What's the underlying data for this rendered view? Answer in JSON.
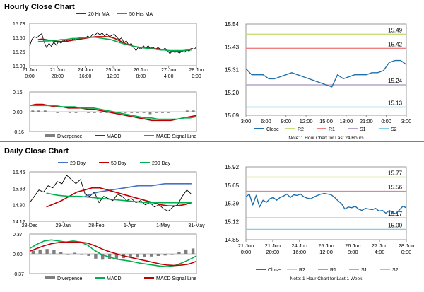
{
  "sections": {
    "hourly_title": "Hourly Close Chart",
    "daily_title": "Daily Close Chart"
  },
  "colors": {
    "price": "#000000",
    "ma_red": "#c00000",
    "ma_green": "#00b050",
    "ma_blue": "#4472c4",
    "bars": "#7f7f7f",
    "close_line": "#1f6fad",
    "r2": "#c5e07a",
    "r1": "#f08080",
    "s1": "#b7a3c9",
    "s2": "#7fd0e8"
  },
  "chart_data": [
    {
      "id": "hourly_price",
      "type": "line",
      "legend": [
        "20 Hr MA",
        "50 Hrs MA"
      ],
      "yticks": [
        "15.73",
        "15.50",
        "15.26",
        "15.03"
      ],
      "ylim": [
        15.03,
        15.73
      ],
      "xticks": [
        [
          "21 Jun",
          "0:00"
        ],
        [
          "21 Jun",
          "20:00"
        ],
        [
          "24 Jun",
          "16:00"
        ],
        [
          "25 Jun",
          "12:00"
        ],
        [
          "26 Jun",
          "8:00"
        ],
        [
          "27 Jun",
          "4:00"
        ],
        [
          "28 Jun",
          "0:00"
        ]
      ],
      "series": [
        {
          "name": "Close",
          "color": "price",
          "values": [
            15.36,
            15.47,
            15.51,
            15.49,
            15.53,
            15.56,
            15.42,
            15.33,
            15.4,
            15.35,
            15.42,
            15.37,
            15.43,
            15.4,
            15.46,
            15.43,
            15.47,
            15.44,
            15.48,
            15.45,
            15.49,
            15.47,
            15.5,
            15.48,
            15.52,
            15.49,
            15.55,
            15.53,
            15.58,
            15.54,
            15.57,
            15.52,
            15.56,
            15.51,
            15.53,
            15.55,
            15.5,
            15.46,
            15.49,
            15.41,
            15.44,
            15.37,
            15.4,
            15.33,
            15.28,
            15.34,
            15.3,
            15.36,
            15.32,
            15.36,
            15.31,
            15.34,
            15.3,
            15.33,
            15.31,
            15.29,
            15.32,
            15.28,
            15.23,
            15.27,
            15.25,
            15.26,
            15.24,
            15.27,
            15.25,
            15.29,
            15.27,
            15.32,
            15.3,
            15.34
          ]
        },
        {
          "name": "20 Hr MA",
          "color": "ma_red",
          "values": [
            15.46,
            15.47,
            15.46,
            15.45,
            15.44,
            15.43,
            15.43,
            15.43,
            15.44,
            15.45,
            15.46,
            15.47,
            15.48,
            15.49,
            15.5,
            15.51,
            15.51,
            15.51,
            15.51,
            15.5,
            15.48,
            15.45,
            15.42,
            15.39,
            15.37,
            15.35,
            15.34,
            15.33,
            15.33,
            15.32,
            15.31,
            15.31,
            15.3,
            15.29,
            15.28,
            15.27,
            15.27,
            15.27,
            15.28,
            15.29,
            15.31
          ]
        },
        {
          "name": "50 Hrs MA",
          "color": "ma_green",
          "values": [
            15.43,
            15.43,
            15.44,
            15.44,
            15.45,
            15.45,
            15.46,
            15.46,
            15.47,
            15.48,
            15.48,
            15.49,
            15.49,
            15.5,
            15.5,
            15.5,
            15.49,
            15.48,
            15.47,
            15.46,
            15.44,
            15.42,
            15.4,
            15.38,
            15.37,
            15.35,
            15.34,
            15.33,
            15.32,
            15.31,
            15.31,
            15.3,
            15.29,
            15.29,
            15.28,
            15.28,
            15.28,
            15.28,
            15.28,
            15.29,
            15.29
          ]
        }
      ]
    },
    {
      "id": "hourly_macd",
      "type": "line",
      "legend": [
        "Divergence",
        "MACD",
        "MACD Signal Line"
      ],
      "yticks": [
        "0.16",
        "0.00",
        "-0.16"
      ],
      "ylim": [
        -0.16,
        0.16
      ],
      "series": [
        {
          "name": "MACD",
          "color": "ma_red",
          "values": [
            0.05,
            0.06,
            0.06,
            0.05,
            0.04,
            0.04,
            0.03,
            0.03,
            0.03,
            0.02,
            0.02,
            0.01,
            0.0,
            -0.01,
            -0.02,
            -0.03,
            -0.04,
            -0.05,
            -0.06,
            -0.07,
            -0.07,
            -0.07,
            -0.07,
            -0.06,
            -0.05,
            -0.04,
            -0.03
          ]
        },
        {
          "name": "MACD Signal Line",
          "color": "ma_green",
          "values": [
            0.05,
            0.05,
            0.05,
            0.05,
            0.05,
            0.04,
            0.04,
            0.04,
            0.03,
            0.03,
            0.03,
            0.02,
            0.01,
            0.0,
            -0.01,
            -0.02,
            -0.03,
            -0.04,
            -0.05,
            -0.05,
            -0.06,
            -0.06,
            -0.06,
            -0.06,
            -0.05,
            -0.05,
            -0.04
          ]
        },
        {
          "name": "Divergence",
          "color": "bars",
          "values": [
            0.01,
            0.01,
            0.01,
            0.0,
            -0.01,
            0.0,
            -0.01,
            -0.01,
            0.0,
            -0.01,
            -0.01,
            -0.01,
            -0.01,
            -0.01,
            -0.01,
            -0.01,
            -0.01,
            -0.01,
            -0.01,
            -0.02,
            -0.01,
            -0.01,
            -0.01,
            0.0,
            0.0,
            0.01,
            0.01
          ]
        }
      ]
    },
    {
      "id": "hourly_pivot",
      "type": "line",
      "yticks": [
        "15.54",
        "15.43",
        "15.31",
        "15.20",
        "15.09"
      ],
      "ylim": [
        15.09,
        15.54
      ],
      "xticks": [
        "3:00",
        "6:00",
        "9:00",
        "12:00",
        "15:00",
        "18:00",
        "21:00",
        "0:00",
        "3:00"
      ],
      "levels": [
        {
          "name": "R2",
          "value": 15.49,
          "label": "15.49",
          "color": "r2"
        },
        {
          "name": "R1",
          "value": 15.42,
          "label": "15.42",
          "color": "r1"
        },
        {
          "name": "S1",
          "value": 15.24,
          "label": "15.24",
          "color": "s1"
        },
        {
          "name": "S2",
          "value": 15.13,
          "label": "15.13",
          "color": "s2"
        }
      ],
      "series": [
        {
          "name": "Close",
          "color": "close_line",
          "values": [
            15.32,
            15.29,
            15.29,
            15.29,
            15.27,
            15.27,
            15.28,
            15.29,
            15.3,
            15.29,
            15.28,
            15.27,
            15.26,
            15.25,
            15.24,
            15.23,
            15.29,
            15.27,
            15.28,
            15.29,
            15.29,
            15.29,
            15.3,
            15.3,
            15.31,
            15.35,
            15.36,
            15.36,
            15.34
          ]
        }
      ],
      "legend": [
        "Close",
        "R2",
        "R1",
        "S1",
        "S2"
      ],
      "note": "Note: 1 Hour Chart for Last 24 Hours"
    },
    {
      "id": "daily_price",
      "type": "line",
      "legend": [
        "20 Day",
        "50 Day",
        "200 Day"
      ],
      "yticks": [
        "16.46",
        "15.68",
        "14.90",
        "14.12"
      ],
      "ylim": [
        14.12,
        16.46
      ],
      "xticks": [
        "28-Dec",
        "29-Jan",
        "28-Feb",
        "1-Apr",
        "1-May",
        "31-May"
      ],
      "series": [
        {
          "name": "Close",
          "color": "price",
          "values": [
            15.0,
            15.3,
            15.6,
            15.5,
            15.8,
            15.7,
            16.0,
            15.9,
            16.3,
            16.1,
            15.9,
            16.1,
            15.4,
            15.3,
            15.5,
            15.0,
            15.3,
            15.2,
            15.1,
            15.4,
            15.3,
            15.1,
            15.2,
            15.0,
            15.1,
            14.9,
            15.0,
            14.8,
            14.9,
            14.7,
            14.6,
            14.8,
            14.9,
            15.3,
            15.6,
            15.4
          ]
        },
        {
          "name": "20 Day",
          "color": "ma_blue",
          "values": [
            15.3,
            15.5,
            15.6,
            15.7,
            15.8,
            15.8,
            15.9,
            15.9,
            15.9
          ]
        },
        {
          "name": "50 Day",
          "color": "ma_red",
          "values": [
            14.8,
            14.95,
            15.1,
            15.3,
            15.5,
            15.6,
            15.7,
            15.7,
            15.6,
            15.5,
            15.4,
            15.3,
            15.2,
            15.1,
            15.0,
            14.9,
            14.85,
            14.85,
            14.9,
            15.0
          ]
        },
        {
          "name": "200 Day",
          "color": "ma_green",
          "values": [
            15.45,
            15.35,
            15.3,
            15.3,
            15.25,
            15.2,
            15.15,
            15.1,
            15.05,
            15.0,
            15.0,
            15.0,
            15.0,
            15.0
          ]
        }
      ]
    },
    {
      "id": "daily_macd",
      "type": "line",
      "legend": [
        "Divergence",
        "MACD",
        "MACD Signal Line"
      ],
      "yticks": [
        "0.37",
        "0.00",
        "-0.37"
      ],
      "ylim": [
        -0.37,
        0.37
      ],
      "series": [
        {
          "name": "MACD",
          "color": "ma_green",
          "values": [
            0.1,
            0.18,
            0.24,
            0.26,
            0.24,
            0.22,
            0.24,
            0.22,
            0.16,
            0.06,
            -0.02,
            -0.06,
            -0.1,
            -0.12,
            -0.14,
            -0.17,
            -0.19,
            -0.21,
            -0.23,
            -0.24,
            -0.22,
            -0.17,
            -0.11,
            -0.04
          ]
        },
        {
          "name": "MACD Signal Line",
          "color": "ma_red",
          "values": [
            0.05,
            0.1,
            0.15,
            0.19,
            0.21,
            0.22,
            0.22,
            0.22,
            0.2,
            0.15,
            0.09,
            0.04,
            0.0,
            -0.04,
            -0.07,
            -0.1,
            -0.13,
            -0.16,
            -0.19,
            -0.21,
            -0.22,
            -0.21,
            -0.19,
            -0.14
          ]
        },
        {
          "name": "Divergence",
          "color": "bars",
          "values": [
            0.06,
            0.08,
            0.09,
            0.07,
            0.03,
            0.0,
            0.02,
            0.0,
            -0.04,
            -0.09,
            -0.11,
            -0.1,
            -0.1,
            -0.08,
            -0.07,
            -0.07,
            -0.06,
            -0.05,
            -0.04,
            -0.03,
            0.0,
            0.04,
            0.08,
            0.1
          ]
        }
      ]
    },
    {
      "id": "daily_pivot",
      "type": "line",
      "yticks": [
        "15.92",
        "15.65",
        "15.39",
        "15.12",
        "14.85"
      ],
      "ylim": [
        14.85,
        15.92
      ],
      "xticks": [
        [
          "21 Jun",
          "0:00"
        ],
        [
          "21 Jun",
          "20:00"
        ],
        [
          "24 Jun",
          "16:00"
        ],
        [
          "25 Jun",
          "12:00"
        ],
        [
          "26 Jun",
          "8:00"
        ],
        [
          "27 Jun",
          "4:00"
        ],
        [
          "28 Jun",
          "0:00"
        ]
      ],
      "levels": [
        {
          "name": "R2",
          "value": 15.77,
          "label": "15.77",
          "color": "r2"
        },
        {
          "name": "R1",
          "value": 15.56,
          "label": "15.56",
          "color": "r1"
        },
        {
          "name": "S1",
          "value": 15.17,
          "label": "15.17",
          "color": "s1"
        },
        {
          "name": "S2",
          "value": 15.0,
          "label": "15.00",
          "color": "s2"
        }
      ],
      "series": [
        {
          "name": "Close",
          "color": "close_line",
          "values": [
            15.48,
            15.52,
            15.36,
            15.5,
            15.33,
            15.43,
            15.4,
            15.45,
            15.47,
            15.43,
            15.47,
            15.49,
            15.52,
            15.47,
            15.51,
            15.5,
            15.52,
            15.48,
            15.46,
            15.45,
            15.48,
            15.5,
            15.52,
            15.53,
            15.52,
            15.51,
            15.47,
            15.42,
            15.38,
            15.3,
            15.33,
            15.32,
            15.34,
            15.3,
            15.28,
            15.31,
            15.3,
            15.29,
            15.31,
            15.27,
            15.28,
            15.24,
            15.28,
            15.25,
            15.23,
            15.29,
            15.34,
            15.32
          ]
        }
      ],
      "legend": [
        "Close",
        "R2",
        "R1",
        "S1",
        "S2"
      ],
      "note": "Note: 1 Hour Chart for Last 1 Week"
    }
  ]
}
